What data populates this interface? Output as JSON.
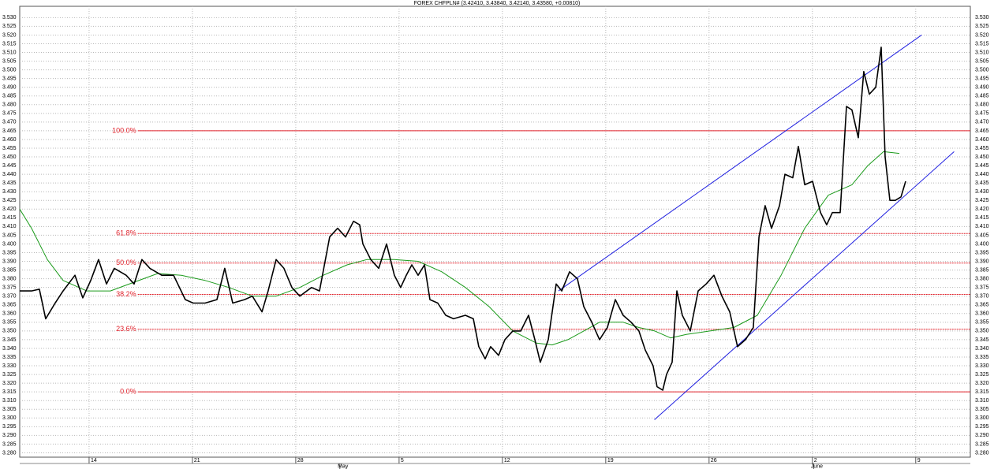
{
  "chart_data": {
    "type": "line",
    "title": "FOREX CHFPLN# (3.42410, 3.43840, 3.42140, 3.43580, +0.00810)",
    "xlim": [
      -4.7,
      59.7
    ],
    "ylim": [
      3.2775,
      3.5365
    ],
    "grid": true,
    "xticks": [
      {
        "value": 0,
        "label": "14"
      },
      {
        "value": 7,
        "label": "21"
      },
      {
        "value": 14,
        "label": "28"
      },
      {
        "value": 21,
        "label": "5"
      },
      {
        "value": 28,
        "label": "12"
      },
      {
        "value": 35,
        "label": "19"
      },
      {
        "value": 42,
        "label": "26"
      },
      {
        "value": 49,
        "label": "2"
      },
      {
        "value": 56,
        "label": "9"
      }
    ],
    "months": [
      {
        "value": 17.2,
        "label": "May"
      },
      {
        "value": 49.3,
        "label": "June"
      }
    ],
    "yticks": [
      {
        "value": 3.28,
        "label": "3.280"
      },
      {
        "value": 3.285,
        "label": "3.285"
      },
      {
        "value": 3.29,
        "label": "3.290"
      },
      {
        "value": 3.295,
        "label": "3.295"
      },
      {
        "value": 3.3,
        "label": "3.300"
      },
      {
        "value": 3.305,
        "label": "3.305"
      },
      {
        "value": 3.31,
        "label": "3.310"
      },
      {
        "value": 3.315,
        "label": "3.315"
      },
      {
        "value": 3.32,
        "label": "3.320"
      },
      {
        "value": 3.325,
        "label": "3.325"
      },
      {
        "value": 3.33,
        "label": "3.330"
      },
      {
        "value": 3.335,
        "label": "3.335"
      },
      {
        "value": 3.34,
        "label": "3.340"
      },
      {
        "value": 3.345,
        "label": "3.345"
      },
      {
        "value": 3.35,
        "label": "3.350"
      },
      {
        "value": 3.355,
        "label": "3.355"
      },
      {
        "value": 3.36,
        "label": "3.360"
      },
      {
        "value": 3.365,
        "label": "3.365"
      },
      {
        "value": 3.37,
        "label": "3.370"
      },
      {
        "value": 3.375,
        "label": "3.375"
      },
      {
        "value": 3.38,
        "label": "3.380"
      },
      {
        "value": 3.385,
        "label": "3.385"
      },
      {
        "value": 3.39,
        "label": "3.390"
      },
      {
        "value": 3.395,
        "label": "3.395"
      },
      {
        "value": 3.4,
        "label": "3.400"
      },
      {
        "value": 3.405,
        "label": "3.405"
      },
      {
        "value": 3.41,
        "label": "3.410"
      },
      {
        "value": 3.415,
        "label": "3.415"
      },
      {
        "value": 3.42,
        "label": "3.420"
      },
      {
        "value": 3.425,
        "label": "3.425"
      },
      {
        "value": 3.43,
        "label": "3.430"
      },
      {
        "value": 3.435,
        "label": "3.435"
      },
      {
        "value": 3.44,
        "label": "3.440"
      },
      {
        "value": 3.445,
        "label": "3.445"
      },
      {
        "value": 3.45,
        "label": "3.450"
      },
      {
        "value": 3.455,
        "label": "3.455"
      },
      {
        "value": 3.46,
        "label": "3.460"
      },
      {
        "value": 3.465,
        "label": "3.465"
      },
      {
        "value": 3.47,
        "label": "3.470"
      },
      {
        "value": 3.475,
        "label": "3.475"
      },
      {
        "value": 3.48,
        "label": "3.480"
      },
      {
        "value": 3.485,
        "label": "3.485"
      },
      {
        "value": 3.49,
        "label": "3.490"
      },
      {
        "value": 3.495,
        "label": "3.495"
      },
      {
        "value": 3.5,
        "label": "3.500"
      },
      {
        "value": 3.505,
        "label": "3.505"
      },
      {
        "value": 3.51,
        "label": "3.510"
      },
      {
        "value": 3.515,
        "label": "3.515"
      },
      {
        "value": 3.52,
        "label": "3.520"
      },
      {
        "value": 3.525,
        "label": "3.525"
      },
      {
        "value": 3.53,
        "label": "3.530"
      }
    ],
    "fib_start": 3.3,
    "fib_color": "#e0202a",
    "fib_levels": [
      {
        "value": 3.465,
        "label": "100.0%"
      },
      {
        "value": 3.406,
        "label": "61.8%"
      },
      {
        "value": 3.389,
        "label": "50.0%"
      },
      {
        "value": 3.371,
        "label": "38.2%"
      },
      {
        "value": 3.351,
        "label": "23.6%"
      },
      {
        "value": 3.315,
        "label": "0.0%"
      }
    ],
    "channel_color": "#2020e0",
    "channel": [
      {
        "x": [
          31.8,
          56.4
        ],
        "values": [
          3.373,
          3.52
        ]
      },
      {
        "x": [
          38.3,
          58.6
        ],
        "values": [
          3.299,
          3.453
        ]
      }
    ],
    "series": [
      {
        "color": "#000000",
        "width": 1.6,
        "x": [
          -4.7,
          -3.9,
          -3.37,
          -2.94,
          -2.3,
          -1.76,
          -0.96,
          -0.43,
          0.11,
          0.64,
          1.18,
          1.71,
          2.51,
          3.05,
          3.58,
          4.12,
          4.92,
          5.72,
          6.52,
          7.05,
          7.86,
          8.66,
          9.19,
          9.73,
          10.53,
          11.06,
          11.71,
          12.13,
          12.67,
          13.2,
          13.74,
          14.27,
          15.07,
          15.61,
          16.3,
          16.84,
          17.37,
          17.91,
          18.33,
          18.55,
          19.08,
          19.62,
          20.15,
          20.68,
          21.11,
          21.49,
          21.86,
          22.29,
          22.72,
          23.09,
          23.62,
          24.16,
          24.69,
          25.49,
          26.03,
          26.4,
          26.83,
          27.2,
          27.74,
          28.17,
          28.7,
          29.24,
          29.77,
          30.2,
          30.57,
          31.11,
          31.64,
          32.02,
          32.55,
          33.08,
          33.51,
          34.05,
          34.58,
          35.11,
          35.65,
          36.18,
          36.72,
          37.25,
          37.68,
          38.21,
          38.48,
          38.86,
          39.12,
          39.5,
          39.82,
          40.19,
          40.73,
          41.26,
          41.8,
          42.33,
          42.87,
          43.4,
          43.93,
          44.47,
          45.0,
          45.38,
          45.8,
          46.23,
          46.77,
          47.14,
          47.67,
          48.05,
          48.48,
          49.01,
          49.55,
          49.97,
          50.35,
          50.88,
          51.31,
          51.68,
          52.11,
          52.48,
          52.86,
          53.29,
          53.66,
          53.93,
          54.25,
          54.62,
          55.0,
          55.32
        ],
        "values": [
          3.373,
          3.373,
          3.374,
          3.357,
          3.366,
          3.373,
          3.382,
          3.369,
          3.379,
          3.391,
          3.377,
          3.386,
          3.382,
          3.377,
          3.391,
          3.386,
          3.382,
          3.382,
          3.368,
          3.366,
          3.366,
          3.368,
          3.386,
          3.366,
          3.368,
          3.37,
          3.361,
          3.373,
          3.391,
          3.386,
          3.375,
          3.37,
          3.375,
          3.373,
          3.404,
          3.409,
          3.404,
          3.413,
          3.411,
          3.4,
          3.391,
          3.386,
          3.4,
          3.382,
          3.375,
          3.382,
          3.388,
          3.382,
          3.388,
          3.368,
          3.366,
          3.359,
          3.357,
          3.359,
          3.357,
          3.341,
          3.334,
          3.341,
          3.336,
          3.345,
          3.35,
          3.35,
          3.359,
          3.345,
          3.332,
          3.345,
          3.377,
          3.373,
          3.384,
          3.38,
          3.364,
          3.355,
          3.345,
          3.352,
          3.368,
          3.359,
          3.355,
          3.35,
          3.339,
          3.33,
          3.318,
          3.316,
          3.325,
          3.332,
          3.373,
          3.359,
          3.35,
          3.373,
          3.377,
          3.382,
          3.37,
          3.361,
          3.341,
          3.345,
          3.352,
          3.404,
          3.422,
          3.409,
          3.422,
          3.44,
          3.438,
          3.456,
          3.434,
          3.436,
          3.418,
          3.411,
          3.418,
          3.418,
          3.479,
          3.477,
          3.461,
          3.499,
          3.486,
          3.49,
          3.513,
          3.45,
          3.425,
          3.425,
          3.427,
          3.436
        ]
      },
      {
        "color": "#1a9a1a",
        "width": 1,
        "x": [
          -4.7,
          -3.9,
          -2.83,
          -1.76,
          -0.16,
          1.44,
          3.05,
          4.65,
          6.25,
          7.86,
          9.46,
          11.06,
          12.67,
          14.27,
          15.87,
          17.48,
          18.81,
          20.68,
          22.29,
          23.89,
          25.49,
          27.1,
          28.7,
          30.31,
          31.37,
          32.44,
          33.51,
          34.58,
          36.18,
          37.25,
          38.32,
          39.39,
          40.46,
          42.06,
          43.67,
          45.27,
          46.88,
          48.48,
          50.08,
          51.68,
          52.76,
          53.82,
          54.89
        ],
        "values": [
          3.42,
          3.409,
          3.391,
          3.379,
          3.373,
          3.373,
          3.378,
          3.383,
          3.382,
          3.379,
          3.375,
          3.37,
          3.37,
          3.375,
          3.382,
          3.388,
          3.391,
          3.391,
          3.39,
          3.384,
          3.375,
          3.364,
          3.35,
          3.343,
          3.342,
          3.345,
          3.35,
          3.355,
          3.355,
          3.352,
          3.35,
          3.346,
          3.348,
          3.35,
          3.352,
          3.359,
          3.382,
          3.409,
          3.428,
          3.434,
          3.445,
          3.453,
          3.452
        ]
      }
    ]
  }
}
